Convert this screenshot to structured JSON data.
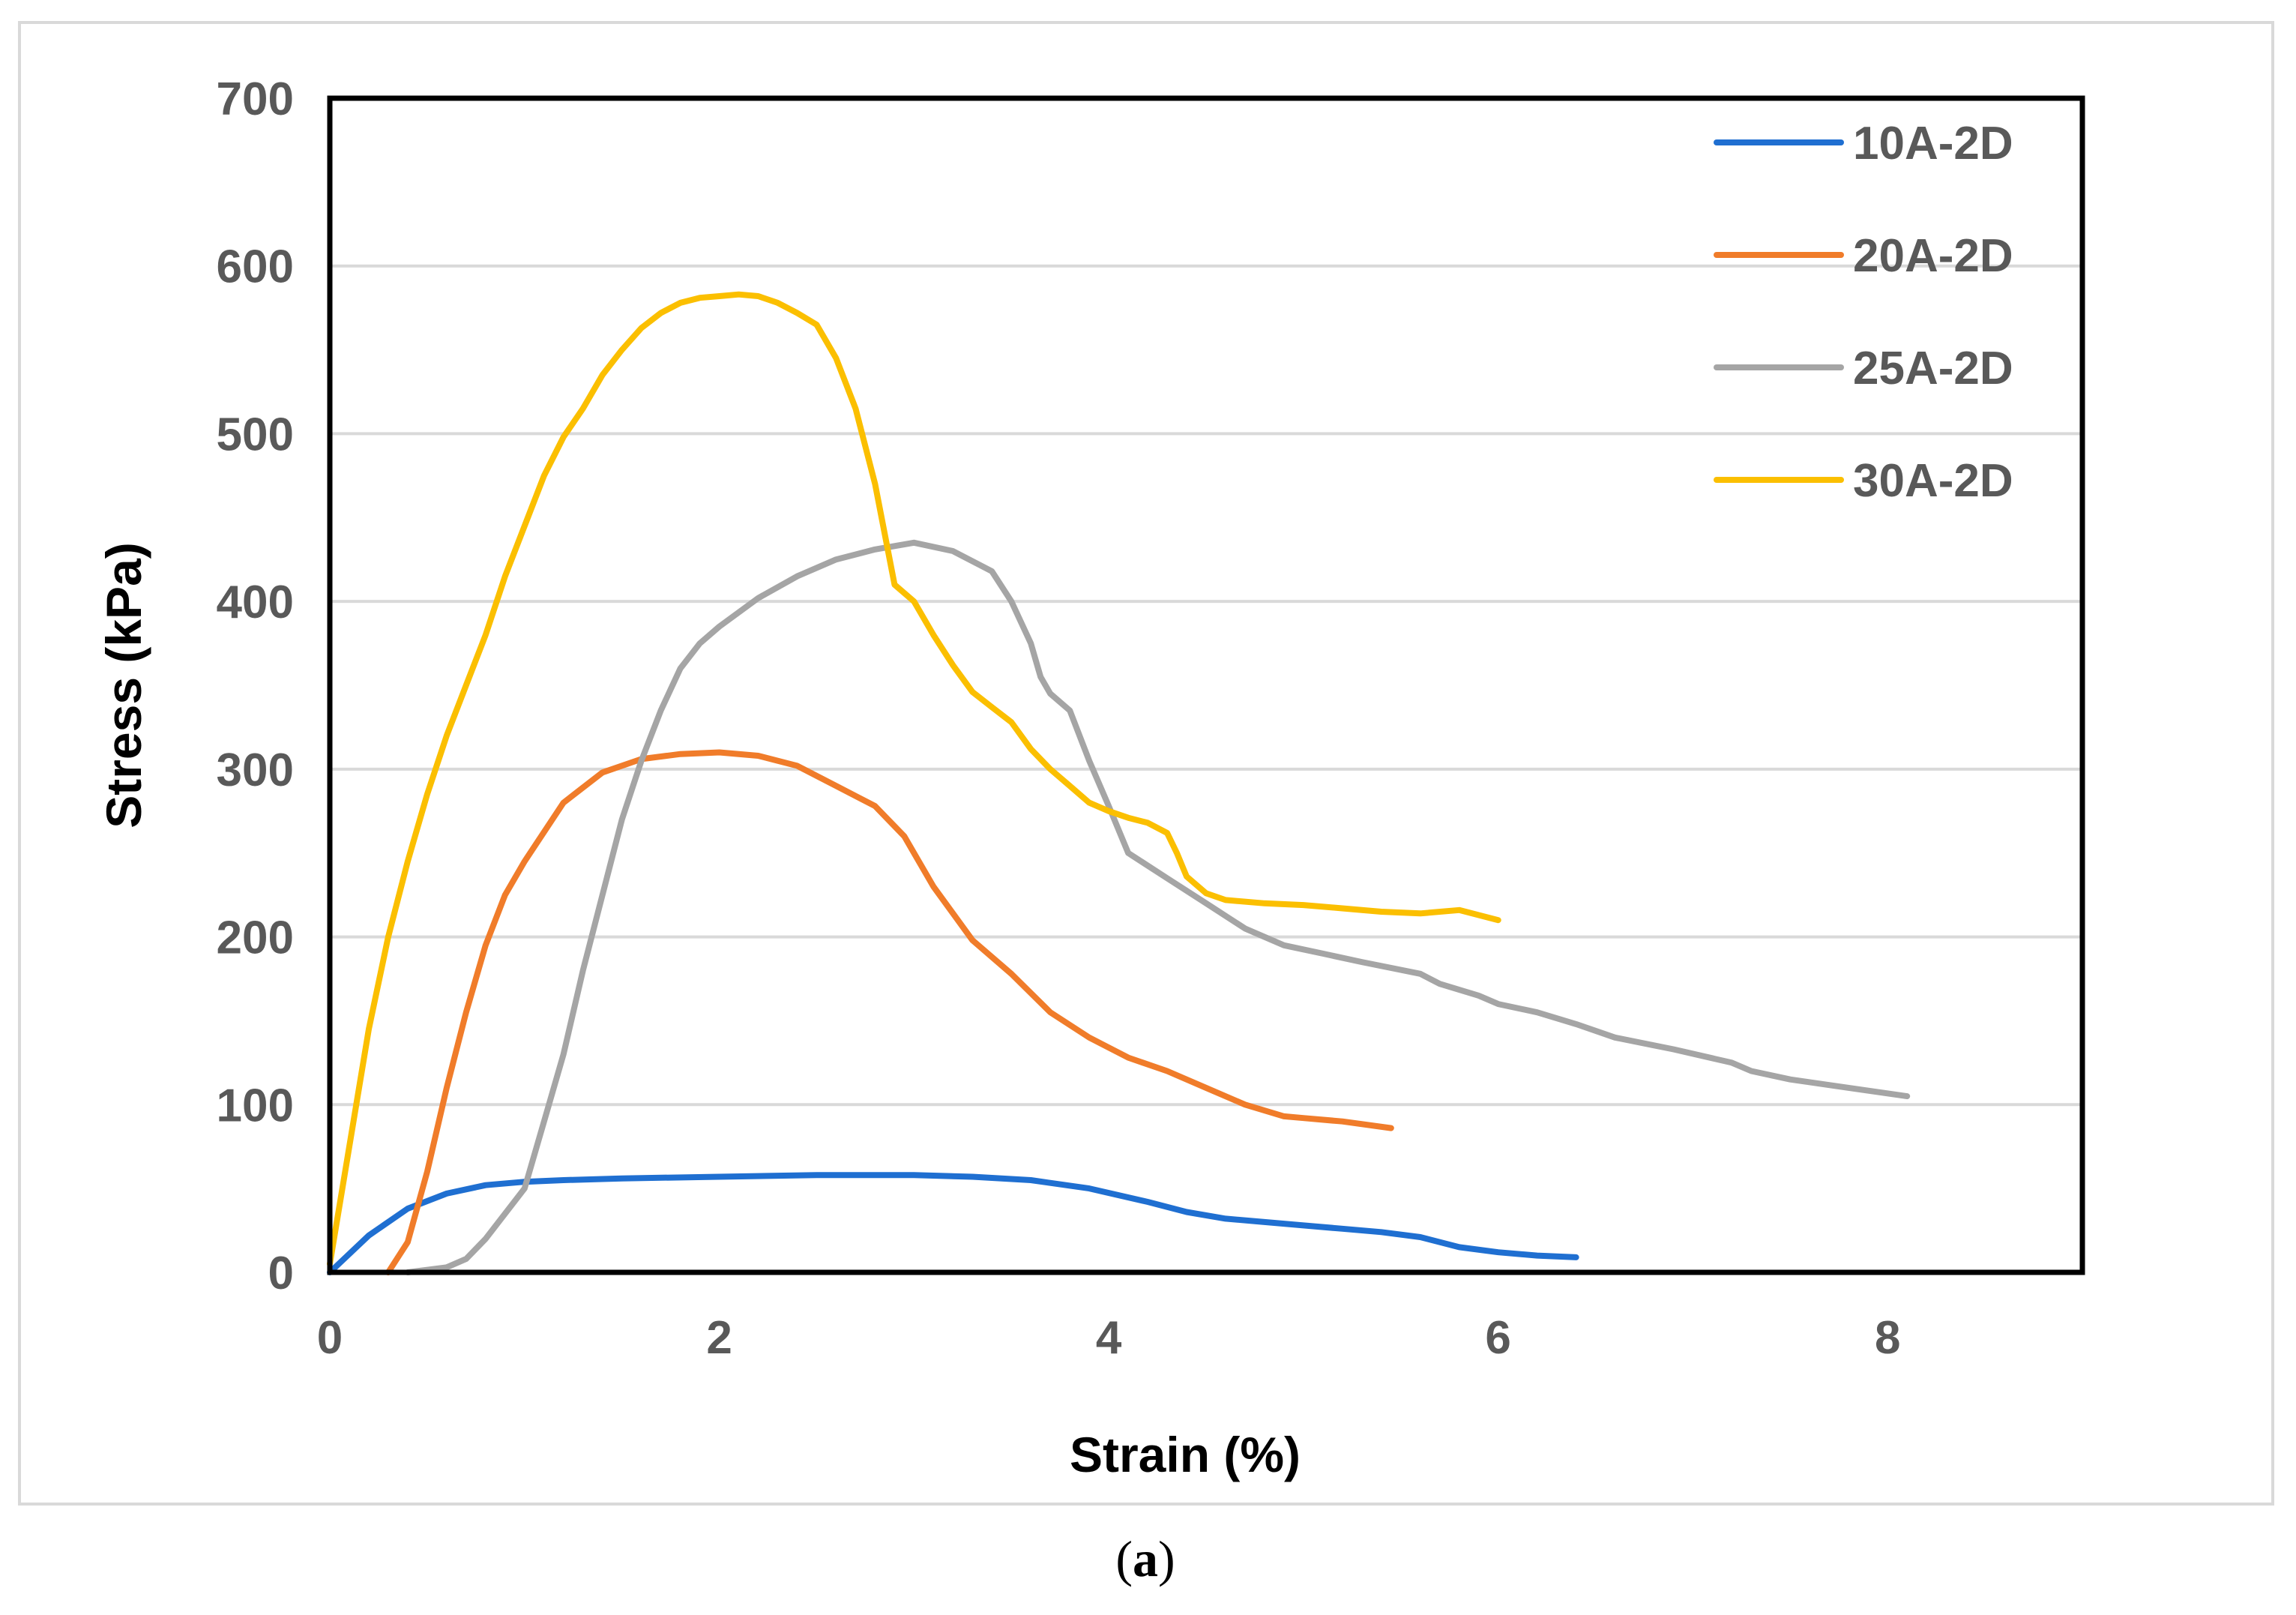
{
  "chart_data": {
    "type": "line",
    "title": "",
    "xlabel": "Strain (%)",
    "ylabel": "Stress (kPa)",
    "xlim": [
      0,
      9
    ],
    "ylim": [
      0,
      700
    ],
    "xticks": [
      0,
      2,
      4,
      6,
      8
    ],
    "yticks": [
      0,
      100,
      200,
      300,
      400,
      500,
      600,
      700
    ],
    "grid": "horizontal",
    "legend_position": "top-right",
    "series": [
      {
        "name": "10A-2D",
        "color": "#1f6fd1",
        "x": [
          0,
          0.2,
          0.4,
          0.6,
          0.8,
          1.0,
          1.2,
          1.5,
          2.0,
          2.5,
          3.0,
          3.3,
          3.6,
          3.9,
          4.2,
          4.4,
          4.6,
          4.8,
          5.0,
          5.2,
          5.4,
          5.6,
          5.8,
          6.0,
          6.2,
          6.4
        ],
        "y": [
          0,
          22,
          38,
          47,
          52,
          54,
          55,
          56,
          57,
          58,
          58,
          57,
          55,
          50,
          42,
          36,
          32,
          30,
          28,
          26,
          24,
          21,
          15,
          12,
          10,
          9
        ]
      },
      {
        "name": "20A-2D",
        "color": "#f07c2a",
        "x": [
          0.3,
          0.4,
          0.5,
          0.6,
          0.7,
          0.8,
          0.9,
          1.0,
          1.2,
          1.4,
          1.6,
          1.8,
          2.0,
          2.2,
          2.4,
          2.6,
          2.8,
          2.95,
          3.1,
          3.3,
          3.5,
          3.7,
          3.9,
          4.1,
          4.3,
          4.5,
          4.7,
          4.9,
          5.0,
          5.2,
          5.45
        ],
        "y": [
          0,
          18,
          60,
          110,
          155,
          195,
          225,
          245,
          280,
          298,
          306,
          309,
          310,
          308,
          302,
          290,
          278,
          260,
          230,
          198,
          178,
          155,
          140,
          128,
          120,
          110,
          100,
          93,
          92,
          90,
          86
        ]
      },
      {
        "name": "25A-2D",
        "color": "#a5a5a5",
        "x": [
          0.4,
          0.6,
          0.7,
          0.8,
          0.9,
          1.0,
          1.1,
          1.2,
          1.3,
          1.4,
          1.5,
          1.6,
          1.7,
          1.8,
          1.9,
          2.0,
          2.2,
          2.4,
          2.6,
          2.8,
          3.0,
          3.2,
          3.4,
          3.5,
          3.6,
          3.65,
          3.7,
          3.8,
          3.9,
          4.0,
          4.1,
          4.3,
          4.5,
          4.7,
          4.9,
          5.1,
          5.3,
          5.6,
          5.7,
          5.9,
          6.0,
          6.2,
          6.4,
          6.6,
          6.9,
          7.2,
          7.3,
          7.5,
          7.8,
          8.1
        ],
        "y": [
          0,
          3,
          8,
          20,
          35,
          50,
          90,
          130,
          180,
          225,
          270,
          305,
          335,
          360,
          375,
          385,
          402,
          415,
          425,
          431,
          435,
          430,
          418,
          400,
          375,
          355,
          345,
          335,
          305,
          278,
          250,
          235,
          220,
          205,
          195,
          190,
          185,
          178,
          172,
          165,
          160,
          155,
          148,
          140,
          133,
          125,
          120,
          115,
          110,
          105
        ]
      },
      {
        "name": "30A-2D",
        "color": "#fbbf00",
        "x": [
          0,
          0.1,
          0.2,
          0.3,
          0.4,
          0.5,
          0.6,
          0.7,
          0.8,
          0.9,
          1.0,
          1.1,
          1.2,
          1.3,
          1.4,
          1.5,
          1.6,
          1.7,
          1.8,
          1.9,
          2.0,
          2.1,
          2.2,
          2.3,
          2.4,
          2.5,
          2.6,
          2.7,
          2.8,
          2.9,
          3.0,
          3.1,
          3.2,
          3.3,
          3.4,
          3.5,
          3.6,
          3.7,
          3.8,
          3.9,
          4.0,
          4.1,
          4.2,
          4.3,
          4.35,
          4.4,
          4.5,
          4.6,
          4.8,
          5.0,
          5.2,
          5.4,
          5.6,
          5.8,
          5.9,
          6.0
        ],
        "y": [
          5,
          75,
          145,
          200,
          245,
          285,
          320,
          350,
          380,
          415,
          445,
          475,
          498,
          515,
          535,
          550,
          563,
          572,
          578,
          581,
          582,
          583,
          582,
          578,
          572,
          565,
          545,
          515,
          470,
          410,
          400,
          380,
          362,
          346,
          337,
          328,
          312,
          300,
          290,
          280,
          275,
          271,
          268,
          262,
          250,
          236,
          226,
          222,
          220,
          219,
          217,
          215,
          214,
          216,
          213,
          210
        ]
      }
    ]
  },
  "caption": {
    "open": "(",
    "letter": "a",
    "close": ")"
  }
}
